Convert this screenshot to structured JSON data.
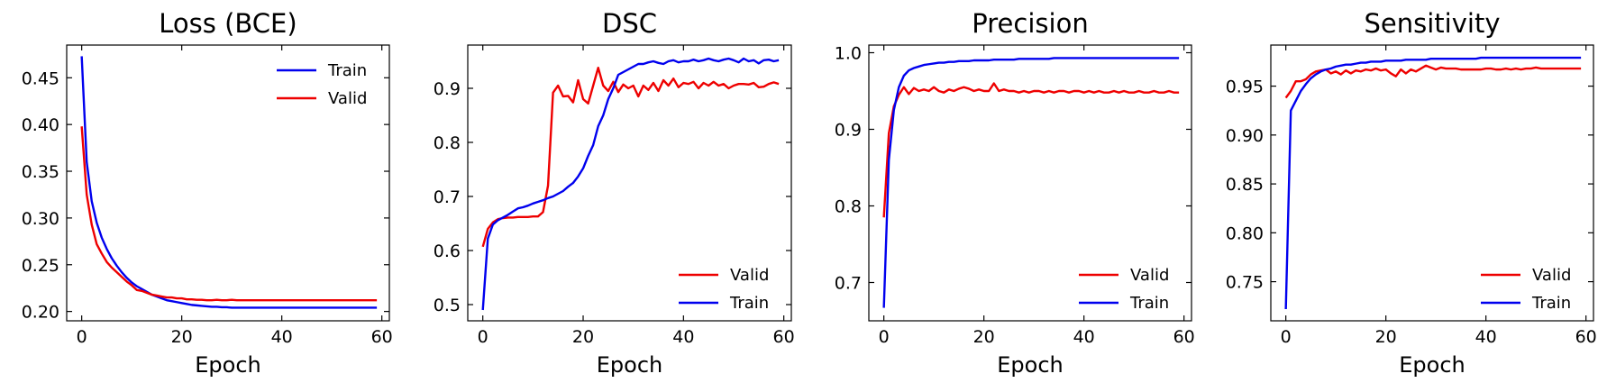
{
  "figure": {
    "background": "#ffffff"
  },
  "chart_data": [
    {
      "type": "line",
      "title": "Loss (BCE)",
      "xlabel": "Epoch",
      "ylabel": "",
      "xlim": [
        -3,
        61.5
      ],
      "ylim": [
        0.19,
        0.485
      ],
      "xticks": [
        0,
        20,
        40,
        60
      ],
      "yticks": [
        0.2,
        0.25,
        0.3,
        0.35,
        0.4,
        0.45
      ],
      "grid": false,
      "legend_position": "top-right",
      "series": [
        {
          "name": "Train",
          "color": "#0000ee",
          "values": [
            0.473,
            0.36,
            0.318,
            0.295,
            0.279,
            0.267,
            0.257,
            0.249,
            0.242,
            0.236,
            0.231,
            0.227,
            0.224,
            0.221,
            0.218,
            0.216,
            0.214,
            0.212,
            0.211,
            0.21,
            0.209,
            0.208,
            0.207,
            0.2065,
            0.206,
            0.2055,
            0.205,
            0.205,
            0.2045,
            0.2045,
            0.204,
            0.204,
            0.204,
            0.204,
            0.204,
            0.204,
            0.204,
            0.204,
            0.204,
            0.204,
            0.204,
            0.204,
            0.204,
            0.204,
            0.204,
            0.204,
            0.204,
            0.204,
            0.204,
            0.204,
            0.204,
            0.204,
            0.204,
            0.204,
            0.204,
            0.204,
            0.204,
            0.204,
            0.204,
            0.204
          ]
        },
        {
          "name": "Valid",
          "color": "#ee0000",
          "values": [
            0.398,
            0.325,
            0.293,
            0.272,
            0.262,
            0.253,
            0.247,
            0.242,
            0.237,
            0.232,
            0.228,
            0.223,
            0.222,
            0.22,
            0.218,
            0.217,
            0.216,
            0.215,
            0.215,
            0.214,
            0.214,
            0.213,
            0.213,
            0.2125,
            0.2125,
            0.212,
            0.212,
            0.2125,
            0.212,
            0.212,
            0.2125,
            0.212,
            0.212,
            0.212,
            0.212,
            0.212,
            0.212,
            0.212,
            0.212,
            0.212,
            0.212,
            0.212,
            0.212,
            0.212,
            0.212,
            0.212,
            0.212,
            0.212,
            0.212,
            0.212,
            0.212,
            0.212,
            0.212,
            0.212,
            0.212,
            0.212,
            0.212,
            0.212,
            0.212,
            0.212
          ]
        }
      ]
    },
    {
      "type": "line",
      "title": "DSC",
      "xlabel": "Epoch",
      "ylabel": "",
      "xlim": [
        -3,
        61.5
      ],
      "ylim": [
        0.47,
        0.98
      ],
      "xticks": [
        0,
        20,
        40,
        60
      ],
      "yticks": [
        0.5,
        0.6,
        0.7,
        0.8,
        0.9
      ],
      "grid": false,
      "legend_position": "bottom-right",
      "series": [
        {
          "name": "Valid",
          "color": "#ee0000",
          "values": [
            0.607,
            0.64,
            0.652,
            0.658,
            0.66,
            0.661,
            0.661,
            0.662,
            0.662,
            0.662,
            0.663,
            0.663,
            0.671,
            0.72,
            0.892,
            0.905,
            0.885,
            0.886,
            0.874,
            0.915,
            0.88,
            0.872,
            0.905,
            0.938,
            0.905,
            0.895,
            0.912,
            0.893,
            0.907,
            0.9,
            0.905,
            0.885,
            0.905,
            0.897,
            0.91,
            0.895,
            0.915,
            0.905,
            0.918,
            0.902,
            0.91,
            0.908,
            0.912,
            0.9,
            0.91,
            0.905,
            0.912,
            0.905,
            0.908,
            0.9,
            0.905,
            0.908,
            0.908,
            0.907,
            0.91,
            0.902,
            0.903,
            0.908,
            0.911,
            0.908
          ]
        },
        {
          "name": "Train",
          "color": "#0000ee",
          "values": [
            0.49,
            0.622,
            0.648,
            0.656,
            0.661,
            0.666,
            0.672,
            0.678,
            0.68,
            0.683,
            0.687,
            0.69,
            0.693,
            0.697,
            0.7,
            0.705,
            0.71,
            0.718,
            0.725,
            0.737,
            0.752,
            0.775,
            0.795,
            0.83,
            0.85,
            0.88,
            0.9,
            0.925,
            0.93,
            0.935,
            0.94,
            0.945,
            0.945,
            0.948,
            0.95,
            0.947,
            0.945,
            0.95,
            0.952,
            0.948,
            0.95,
            0.95,
            0.953,
            0.95,
            0.952,
            0.955,
            0.952,
            0.95,
            0.953,
            0.955,
            0.952,
            0.948,
            0.955,
            0.95,
            0.952,
            0.946,
            0.952,
            0.953,
            0.95,
            0.952
          ]
        }
      ]
    },
    {
      "type": "line",
      "title": "Precision",
      "xlabel": "Epoch",
      "ylabel": "",
      "xlim": [
        -3,
        61.5
      ],
      "ylim": [
        0.65,
        1.01
      ],
      "xticks": [
        0,
        20,
        40,
        60
      ],
      "yticks": [
        0.7,
        0.8,
        0.9,
        1.0
      ],
      "grid": false,
      "legend_position": "bottom-right",
      "series": [
        {
          "name": "Valid",
          "color": "#ee0000",
          "values": [
            0.785,
            0.895,
            0.93,
            0.945,
            0.955,
            0.946,
            0.954,
            0.95,
            0.952,
            0.95,
            0.955,
            0.95,
            0.948,
            0.952,
            0.95,
            0.953,
            0.955,
            0.953,
            0.95,
            0.952,
            0.95,
            0.95,
            0.96,
            0.95,
            0.952,
            0.95,
            0.95,
            0.948,
            0.95,
            0.948,
            0.95,
            0.95,
            0.948,
            0.95,
            0.948,
            0.95,
            0.95,
            0.948,
            0.95,
            0.95,
            0.948,
            0.95,
            0.948,
            0.95,
            0.948,
            0.948,
            0.95,
            0.948,
            0.95,
            0.948,
            0.948,
            0.95,
            0.948,
            0.948,
            0.95,
            0.948,
            0.948,
            0.95,
            0.948,
            0.948
          ]
        },
        {
          "name": "Train",
          "color": "#0000ee",
          "values": [
            0.667,
            0.86,
            0.925,
            0.955,
            0.97,
            0.977,
            0.98,
            0.982,
            0.984,
            0.985,
            0.986,
            0.987,
            0.987,
            0.988,
            0.988,
            0.989,
            0.989,
            0.989,
            0.99,
            0.99,
            0.99,
            0.99,
            0.991,
            0.991,
            0.991,
            0.991,
            0.991,
            0.992,
            0.992,
            0.992,
            0.992,
            0.992,
            0.992,
            0.992,
            0.993,
            0.993,
            0.993,
            0.993,
            0.993,
            0.993,
            0.993,
            0.993,
            0.993,
            0.993,
            0.993,
            0.993,
            0.993,
            0.993,
            0.993,
            0.993,
            0.993,
            0.993,
            0.993,
            0.993,
            0.993,
            0.993,
            0.993,
            0.993,
            0.993,
            0.993
          ]
        }
      ]
    },
    {
      "type": "line",
      "title": "Sensitivity",
      "xlabel": "Epoch",
      "ylabel": "",
      "xlim": [
        -3,
        61.5
      ],
      "ylim": [
        0.71,
        0.992
      ],
      "xticks": [
        0,
        20,
        40,
        60
      ],
      "yticks": [
        0.75,
        0.8,
        0.85,
        0.9,
        0.95
      ],
      "grid": false,
      "legend_position": "bottom-right",
      "series": [
        {
          "name": "Valid",
          "color": "#ee0000",
          "values": [
            0.938,
            0.945,
            0.955,
            0.955,
            0.957,
            0.962,
            0.965,
            0.966,
            0.967,
            0.963,
            0.965,
            0.962,
            0.966,
            0.963,
            0.966,
            0.965,
            0.967,
            0.966,
            0.968,
            0.966,
            0.967,
            0.963,
            0.96,
            0.967,
            0.963,
            0.967,
            0.965,
            0.968,
            0.971,
            0.969,
            0.967,
            0.969,
            0.968,
            0.968,
            0.968,
            0.967,
            0.967,
            0.967,
            0.967,
            0.967,
            0.968,
            0.968,
            0.967,
            0.967,
            0.968,
            0.967,
            0.968,
            0.967,
            0.968,
            0.968,
            0.969,
            0.968,
            0.968,
            0.968,
            0.968,
            0.968,
            0.968,
            0.968,
            0.968,
            0.968
          ]
        },
        {
          "name": "Train",
          "color": "#0000ee",
          "values": [
            0.722,
            0.925,
            0.935,
            0.945,
            0.952,
            0.958,
            0.962,
            0.965,
            0.967,
            0.968,
            0.97,
            0.971,
            0.972,
            0.972,
            0.973,
            0.974,
            0.974,
            0.975,
            0.975,
            0.975,
            0.976,
            0.976,
            0.976,
            0.976,
            0.977,
            0.977,
            0.977,
            0.977,
            0.977,
            0.978,
            0.978,
            0.978,
            0.978,
            0.978,
            0.978,
            0.978,
            0.978,
            0.978,
            0.978,
            0.979,
            0.979,
            0.979,
            0.979,
            0.979,
            0.979,
            0.979,
            0.979,
            0.979,
            0.979,
            0.979,
            0.979,
            0.979,
            0.979,
            0.979,
            0.979,
            0.979,
            0.979,
            0.979,
            0.979,
            0.979
          ]
        }
      ]
    }
  ]
}
